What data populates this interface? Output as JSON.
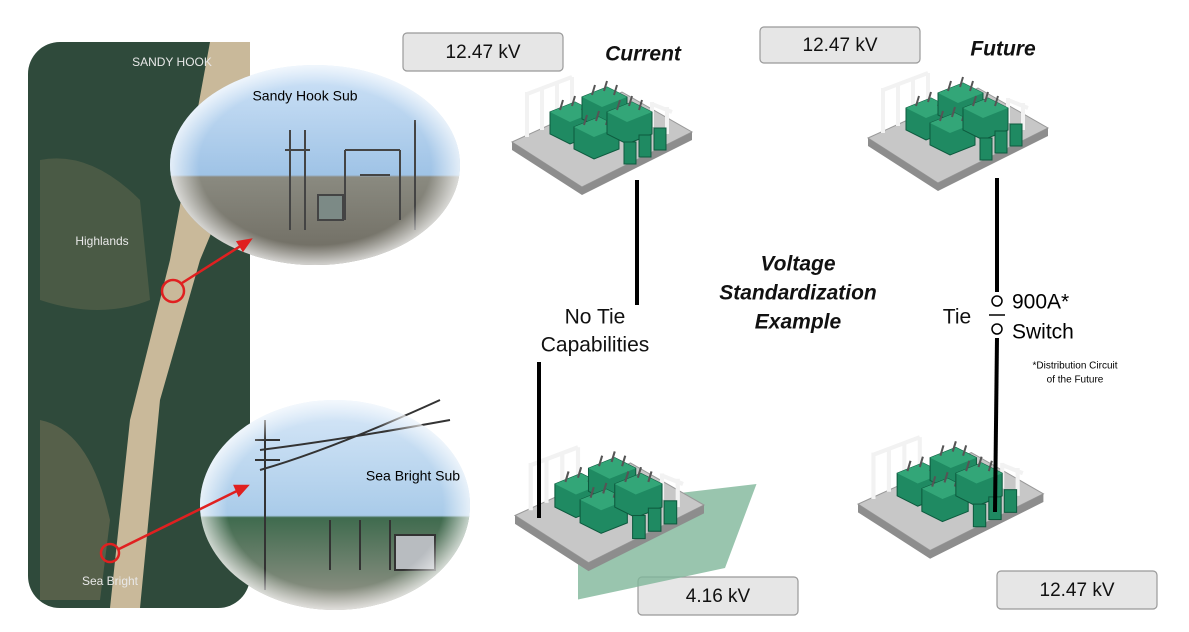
{
  "map": {
    "labels": [
      "SANDY HOOK",
      "Highlands",
      "Sea Bright"
    ]
  },
  "photos": [
    {
      "label": "Sandy Hook Sub"
    },
    {
      "label": "Sea Bright Sub"
    }
  ],
  "current": {
    "title": "Current",
    "top_voltage": "12.47 kV",
    "bottom_voltage": "4.16 kV",
    "connection": [
      "No Tie",
      "Capabilities"
    ]
  },
  "center_title": [
    "Voltage",
    "Standardization",
    "Example"
  ],
  "future": {
    "title": "Future",
    "top_voltage": "12.47 kV",
    "bottom_voltage": "12.47 kV",
    "tie": "Tie",
    "switch": [
      "900A*",
      "Switch"
    ],
    "note": [
      "*Distribution Circuit",
      "of the Future"
    ]
  }
}
